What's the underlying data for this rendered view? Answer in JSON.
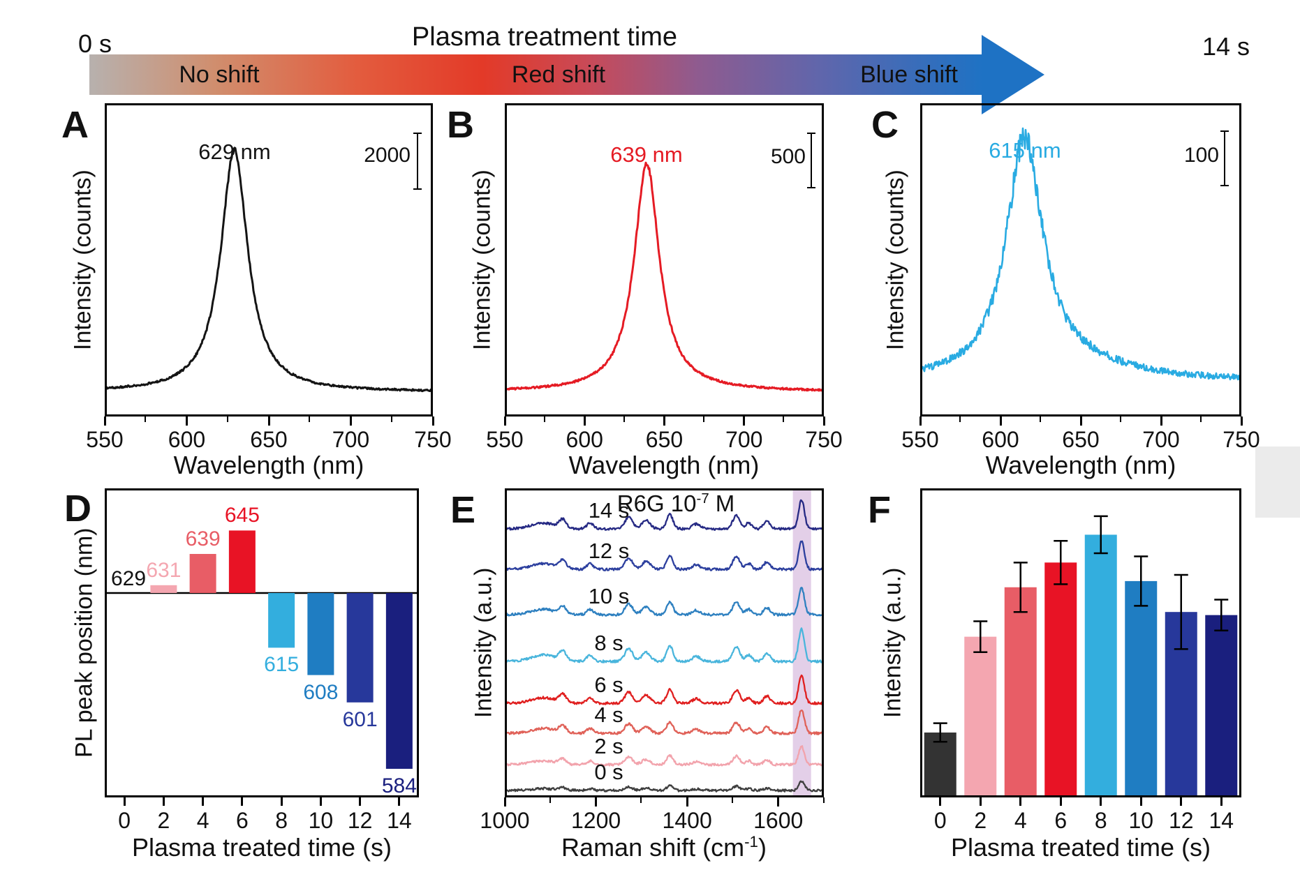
{
  "banner": {
    "title": "Plasma treatment time",
    "start_label": "0 s",
    "end_label": "14 s",
    "zones": [
      "No shift",
      "Red shift",
      "Blue shift"
    ],
    "gradient": [
      "#b7b1ae",
      "#d08e6e",
      "#e35c3e",
      "#e33a28",
      "#c84a58",
      "#8f5b8f",
      "#5f66ac",
      "#1e72c4"
    ]
  },
  "palette": {
    "t0": "#333333",
    "t2": "#f4a6b0",
    "t4": "#e85d66",
    "t6": "#e81325",
    "t8": "#33aede",
    "t10": "#1f7dc2",
    "t12": "#27389b",
    "t14": "#1a1f7e"
  },
  "panels": {
    "a": {
      "letter": "A",
      "ylabel": "Intensity (counts)",
      "xlabel": "Wavelength (nm)",
      "xticks": [
        "550",
        "600",
        "650",
        "700",
        "750"
      ],
      "peak_label": "629 nm",
      "scale_label": "2000",
      "color": "#141414",
      "peak_nm": 629
    },
    "b": {
      "letter": "B",
      "ylabel": "Intensity (counts)",
      "xlabel": "Wavelength (nm)",
      "xticks": [
        "550",
        "600",
        "650",
        "700",
        "750"
      ],
      "peak_label": "639 nm",
      "scale_label": "500",
      "color": "#e51b24",
      "peak_nm": 639
    },
    "c": {
      "letter": "C",
      "ylabel": "Intensity (counts)",
      "xlabel": "Wavelength (nm)",
      "xticks": [
        "550",
        "600",
        "650",
        "700",
        "750"
      ],
      "peak_label": "615 nm",
      "scale_label": "100",
      "color": "#29abe2",
      "peak_nm": 615
    },
    "d": {
      "letter": "D",
      "ylabel": "PL peak position (nm)",
      "xlabel": "Plasma treated time (s)",
      "xticks": [
        "0",
        "2",
        "4",
        "6",
        "8",
        "10",
        "12",
        "14"
      ],
      "baseline_label": "629",
      "baseline_value": 629,
      "categories": [
        0,
        2,
        4,
        6,
        8,
        10,
        12,
        14
      ],
      "values": [
        629,
        631,
        639,
        645,
        615,
        608,
        601,
        584
      ],
      "bar_labels": [
        "631",
        "639",
        "645",
        "615",
        "608",
        "601",
        "584"
      ],
      "bar_colors": [
        "#f4a6b0",
        "#e85d66",
        "#e81325",
        "#33aede",
        "#1f7dc2",
        "#27389b",
        "#1a1f7e"
      ]
    },
    "e": {
      "letter": "E",
      "ylabel": "Intensity (a.u.)",
      "xlabel_base": "Raman shift (cm",
      "xlabel_sup": "-1",
      "xlabel_close": ")",
      "title_base": "R6G 10",
      "title_sup": "-7",
      "title_unit": "M",
      "xticks": [
        "1000",
        "1200",
        "1400",
        "1600"
      ],
      "traces": [
        {
          "label": "0 s",
          "color": "#3f3f3f",
          "rel_intensity": 0.28
        },
        {
          "label": "2 s",
          "color": "#f2a3ac",
          "rel_intensity": 0.57
        },
        {
          "label": "4 s",
          "color": "#e06158",
          "rel_intensity": 0.74
        },
        {
          "label": "6 s",
          "color": "#e01f1f",
          "rel_intensity": 0.87
        },
        {
          "label": "8 s",
          "color": "#49b5dc",
          "rel_intensity": 1.0
        },
        {
          "label": "10 s",
          "color": "#2e80c0",
          "rel_intensity": 0.83
        },
        {
          "label": "12 s",
          "color": "#2c3f9e",
          "rel_intensity": 0.87
        },
        {
          "label": "14 s",
          "color": "#262a84",
          "rel_intensity": 0.91
        }
      ],
      "highlight_band_cm": [
        1632,
        1672
      ],
      "highlight_color": "#c79fd2",
      "peaks_cm": [
        1085,
        1127,
        1187,
        1272,
        1310,
        1362,
        1420,
        1508,
        1535,
        1575,
        1651
      ]
    },
    "f": {
      "letter": "F",
      "ylabel": "Intensity (a.u.)",
      "xlabel": "Plasma treated time (s)",
      "xticks": [
        "0",
        "2",
        "4",
        "6",
        "8",
        "10",
        "12",
        "14"
      ],
      "categories": [
        0,
        2,
        4,
        6,
        8,
        10,
        12,
        14
      ],
      "values": [
        0.21,
        0.52,
        0.68,
        0.76,
        0.85,
        0.7,
        0.6,
        0.59
      ],
      "errors": [
        0.03,
        0.05,
        0.08,
        0.07,
        0.06,
        0.08,
        0.12,
        0.05
      ],
      "bar_colors": [
        "#333333",
        "#f4a6b0",
        "#e85d66",
        "#e81325",
        "#33aede",
        "#1f7dc2",
        "#27389b",
        "#1a1f7e"
      ]
    }
  },
  "chart_data": [
    {
      "panel": "A",
      "type": "line",
      "title": "629 nm",
      "xlabel": "Wavelength (nm)",
      "ylabel": "Intensity (counts)",
      "x_range": [
        550,
        750
      ],
      "xticks": [
        550,
        600,
        650,
        700,
        750
      ],
      "peak_nm": 629,
      "scale_bar_counts": 2000,
      "color": "#141414",
      "description": "PL spectrum before plasma treatment (0 s), no shift"
    },
    {
      "panel": "B",
      "type": "line",
      "title": "639 nm",
      "xlabel": "Wavelength (nm)",
      "ylabel": "Intensity (counts)",
      "x_range": [
        550,
        750
      ],
      "xticks": [
        550,
        600,
        650,
        700,
        750
      ],
      "peak_nm": 639,
      "scale_bar_counts": 500,
      "color": "#e51b24",
      "description": "PL spectrum, red-shifted peak"
    },
    {
      "panel": "C",
      "type": "line",
      "title": "615 nm",
      "xlabel": "Wavelength (nm)",
      "ylabel": "Intensity (counts)",
      "x_range": [
        550,
        750
      ],
      "xticks": [
        550,
        600,
        650,
        700,
        750
      ],
      "peak_nm": 615,
      "scale_bar_counts": 100,
      "color": "#29abe2",
      "description": "PL spectrum, blue-shifted noisy peak"
    },
    {
      "panel": "D",
      "type": "bar",
      "categories": [
        0,
        2,
        4,
        6,
        8,
        10,
        12,
        14
      ],
      "values": [
        629,
        631,
        639,
        645,
        615,
        608,
        601,
        584
      ],
      "baseline": 629,
      "xlabel": "Plasma treated time (s)",
      "ylabel": "PL peak position (nm)",
      "bar_labels": [
        "629",
        "631",
        "639",
        "645",
        "615",
        "608",
        "601",
        "584"
      ]
    },
    {
      "panel": "E",
      "type": "line",
      "series": [
        "0 s",
        "2 s",
        "4 s",
        "6 s",
        "8 s",
        "10 s",
        "12 s",
        "14 s"
      ],
      "xlabel": "Raman shift (cm-1)",
      "ylabel": "Intensity (a.u.)",
      "x_range": [
        1000,
        1700
      ],
      "xticks": [
        1000,
        1200,
        1400,
        1600
      ],
      "annotation": "R6G 10-7 M",
      "highlight_band": [
        1632,
        1672
      ],
      "raman_peaks": [
        1085,
        1127,
        1187,
        1272,
        1310,
        1362,
        1420,
        1508,
        1535,
        1575,
        1651
      ],
      "relative_intensities": [
        0.28,
        0.57,
        0.74,
        0.87,
        1.0,
        0.83,
        0.87,
        0.91
      ]
    },
    {
      "panel": "F",
      "type": "bar",
      "categories": [
        0,
        2,
        4,
        6,
        8,
        10,
        12,
        14
      ],
      "values": [
        0.21,
        0.52,
        0.68,
        0.76,
        0.85,
        0.7,
        0.6,
        0.59
      ],
      "errors": [
        0.03,
        0.05,
        0.08,
        0.07,
        0.06,
        0.08,
        0.12,
        0.05
      ],
      "xlabel": "Plasma treated time (s)",
      "ylabel": "Intensity (a.u.)"
    }
  ]
}
